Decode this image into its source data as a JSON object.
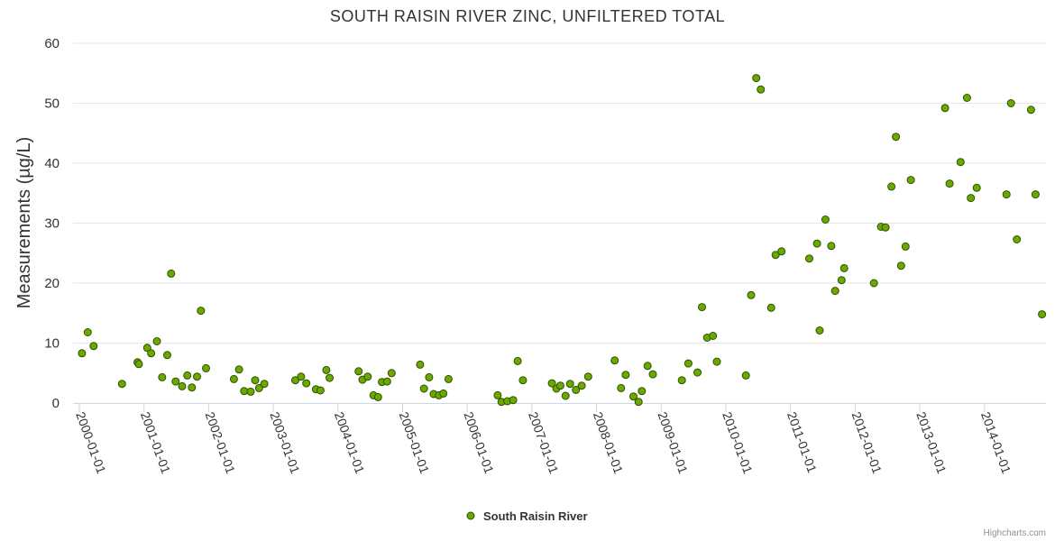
{
  "chart_data": {
    "type": "scatter",
    "title": "SOUTH RAISIN RIVER ZINC, UNFILTERED TOTAL",
    "ylabel": "Measurements (µg/L)",
    "xlabel": "",
    "ylim": [
      0,
      60
    ],
    "yticks": [
      0,
      10,
      20,
      30,
      40,
      50,
      60
    ],
    "xlim": [
      2000.0,
      2014.95
    ],
    "xticks": [
      {
        "value": 2000,
        "label": "2000-01-01"
      },
      {
        "value": 2001,
        "label": "2001-01-01"
      },
      {
        "value": 2002,
        "label": "2002-01-01"
      },
      {
        "value": 2003,
        "label": "2003-01-01"
      },
      {
        "value": 2004,
        "label": "2004-01-01"
      },
      {
        "value": 2005,
        "label": "2005-01-01"
      },
      {
        "value": 2006,
        "label": "2006-01-01"
      },
      {
        "value": 2007,
        "label": "2007-01-01"
      },
      {
        "value": 2008,
        "label": "2008-01-01"
      },
      {
        "value": 2009,
        "label": "2009-01-01"
      },
      {
        "value": 2010,
        "label": "2010-01-01"
      },
      {
        "value": 2011,
        "label": "2011-01-01"
      },
      {
        "value": 2012,
        "label": "2012-01-01"
      },
      {
        "value": 2013,
        "label": "2013-01-01"
      },
      {
        "value": 2014,
        "label": "2014-01-01"
      }
    ],
    "grid": true,
    "legend_position": "bottom-center",
    "series": [
      {
        "name": "South Raisin River",
        "color": "#6aaa00",
        "points": [
          [
            2000.04,
            8.3
          ],
          [
            2000.13,
            11.8
          ],
          [
            2000.22,
            9.5
          ],
          [
            2000.66,
            3.2
          ],
          [
            2000.9,
            6.8
          ],
          [
            2000.92,
            6.5
          ],
          [
            2001.05,
            9.2
          ],
          [
            2001.11,
            8.3
          ],
          [
            2001.2,
            10.3
          ],
          [
            2001.28,
            4.3
          ],
          [
            2001.36,
            8.0
          ],
          [
            2001.42,
            21.6
          ],
          [
            2001.49,
            3.6
          ],
          [
            2001.59,
            2.8
          ],
          [
            2001.67,
            4.6
          ],
          [
            2001.74,
            2.6
          ],
          [
            2001.82,
            4.4
          ],
          [
            2001.88,
            15.4
          ],
          [
            2001.96,
            5.8
          ],
          [
            2002.39,
            4.0
          ],
          [
            2002.47,
            5.6
          ],
          [
            2002.55,
            2.0
          ],
          [
            2002.65,
            1.9
          ],
          [
            2002.72,
            3.8
          ],
          [
            2002.78,
            2.5
          ],
          [
            2002.86,
            3.2
          ],
          [
            2003.34,
            3.8
          ],
          [
            2003.43,
            4.4
          ],
          [
            2003.51,
            3.3
          ],
          [
            2003.66,
            2.3
          ],
          [
            2003.73,
            2.1
          ],
          [
            2003.82,
            5.5
          ],
          [
            2003.87,
            4.2
          ],
          [
            2004.32,
            5.3
          ],
          [
            2004.38,
            3.9
          ],
          [
            2004.46,
            4.4
          ],
          [
            2004.55,
            1.3
          ],
          [
            2004.62,
            1.0
          ],
          [
            2004.68,
            3.5
          ],
          [
            2004.76,
            3.6
          ],
          [
            2004.83,
            5.0
          ],
          [
            2005.27,
            6.4
          ],
          [
            2005.33,
            2.4
          ],
          [
            2005.41,
            4.3
          ],
          [
            2005.48,
            1.5
          ],
          [
            2005.56,
            1.3
          ],
          [
            2005.63,
            1.6
          ],
          [
            2005.71,
            4.0
          ],
          [
            2006.47,
            1.3
          ],
          [
            2006.53,
            0.2
          ],
          [
            2006.62,
            0.3
          ],
          [
            2006.71,
            0.5
          ],
          [
            2006.78,
            7.0
          ],
          [
            2006.86,
            3.8
          ],
          [
            2007.31,
            3.3
          ],
          [
            2007.38,
            2.4
          ],
          [
            2007.44,
            2.9
          ],
          [
            2007.52,
            1.2
          ],
          [
            2007.59,
            3.2
          ],
          [
            2007.68,
            2.2
          ],
          [
            2007.77,
            2.9
          ],
          [
            2007.87,
            4.4
          ],
          [
            2008.28,
            7.1
          ],
          [
            2008.38,
            2.5
          ],
          [
            2008.45,
            4.7
          ],
          [
            2008.57,
            1.1
          ],
          [
            2008.65,
            0.2
          ],
          [
            2008.7,
            2.0
          ],
          [
            2008.79,
            6.2
          ],
          [
            2008.87,
            4.8
          ],
          [
            2009.32,
            3.8
          ],
          [
            2009.42,
            6.6
          ],
          [
            2009.56,
            5.1
          ],
          [
            2009.63,
            16.0
          ],
          [
            2009.71,
            10.9
          ],
          [
            2009.8,
            11.2
          ],
          [
            2009.86,
            6.9
          ],
          [
            2010.31,
            4.6
          ],
          [
            2010.39,
            18.0
          ],
          [
            2010.47,
            54.2
          ],
          [
            2010.54,
            52.3
          ],
          [
            2010.7,
            15.9
          ],
          [
            2010.77,
            24.7
          ],
          [
            2010.86,
            25.3
          ],
          [
            2011.29,
            24.1
          ],
          [
            2011.41,
            26.6
          ],
          [
            2011.45,
            12.1
          ],
          [
            2011.54,
            30.6
          ],
          [
            2011.63,
            26.2
          ],
          [
            2011.69,
            18.7
          ],
          [
            2011.79,
            20.5
          ],
          [
            2011.83,
            22.5
          ],
          [
            2012.29,
            20.0
          ],
          [
            2012.4,
            29.4
          ],
          [
            2012.47,
            29.3
          ],
          [
            2012.56,
            36.1
          ],
          [
            2012.63,
            44.4
          ],
          [
            2012.71,
            22.9
          ],
          [
            2012.78,
            26.1
          ],
          [
            2012.86,
            37.2
          ],
          [
            2013.39,
            49.2
          ],
          [
            2013.46,
            36.6
          ],
          [
            2013.63,
            40.2
          ],
          [
            2013.73,
            50.9
          ],
          [
            2013.79,
            34.2
          ],
          [
            2013.88,
            35.9
          ],
          [
            2014.34,
            34.8
          ],
          [
            2014.41,
            50.0
          ],
          [
            2014.5,
            27.3
          ],
          [
            2014.72,
            48.9
          ],
          [
            2014.79,
            34.8
          ],
          [
            2014.89,
            14.8
          ]
        ]
      }
    ]
  },
  "credits": "Highcharts.com"
}
